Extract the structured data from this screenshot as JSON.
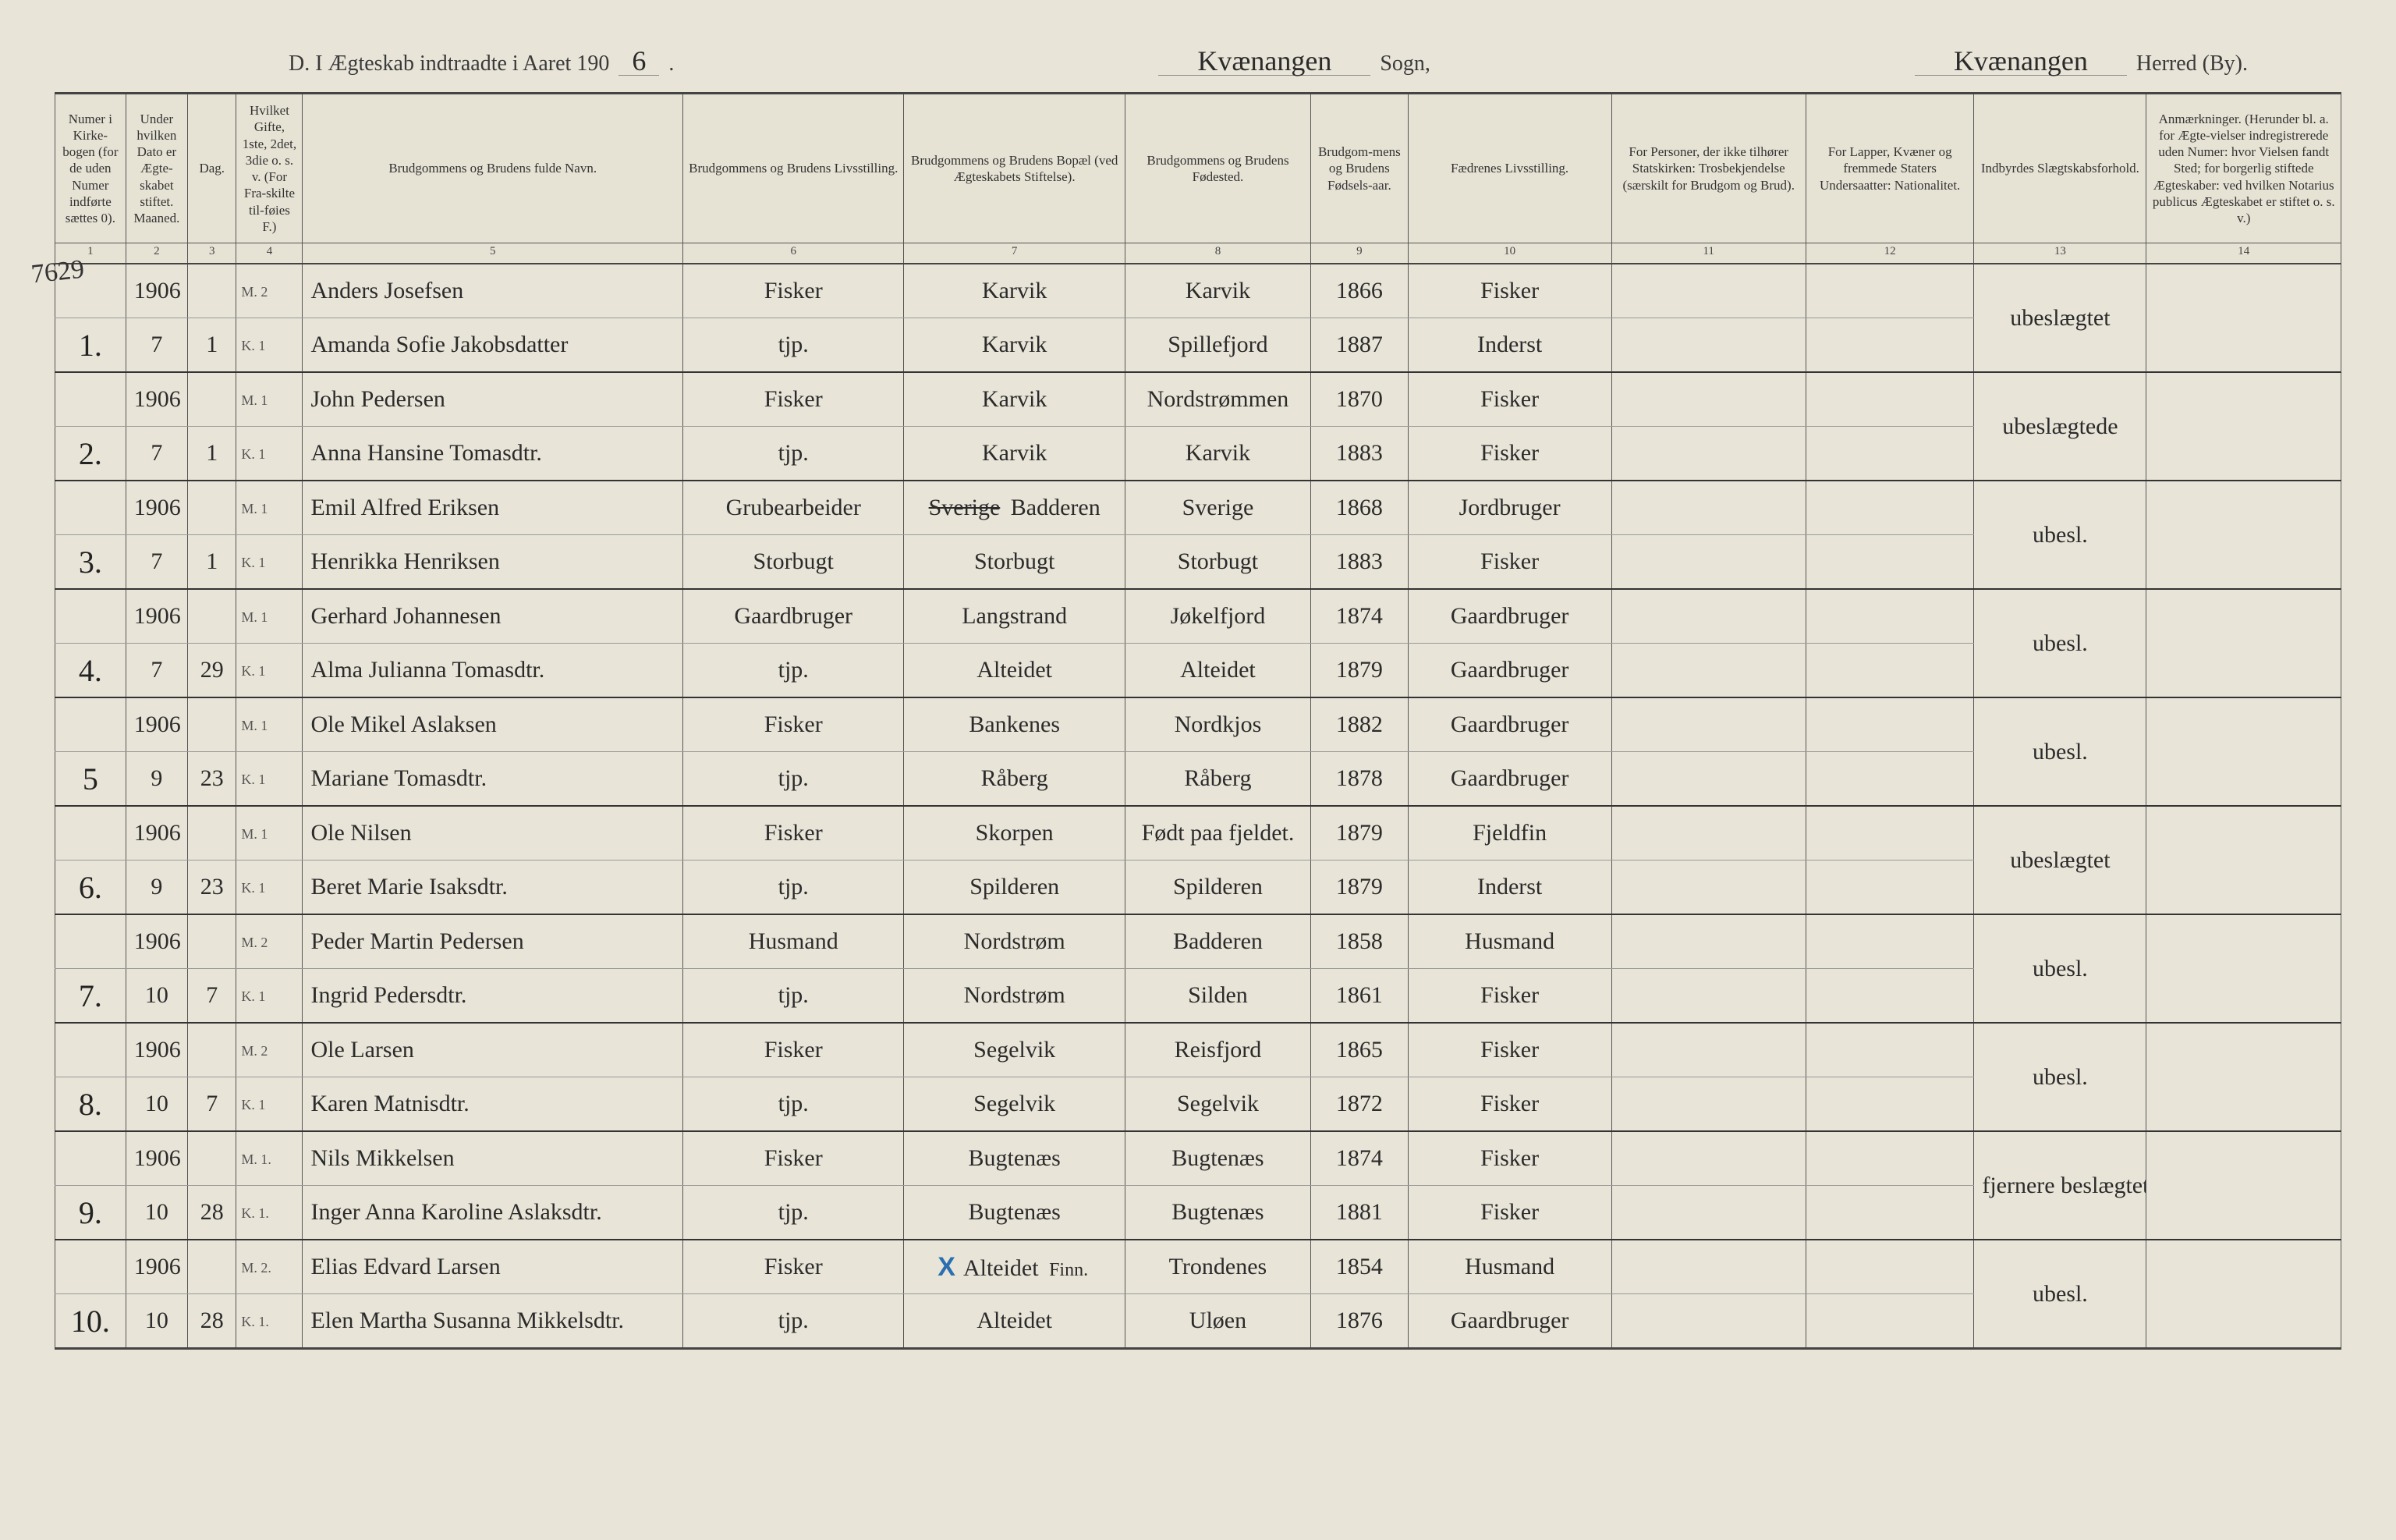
{
  "header": {
    "prefix": "D.  I Ægteskab indtraadte i Aaret 190",
    "year_suffix": "6",
    "period": ".",
    "sogn_value": "Kvænangen",
    "sogn_label": "Sogn,",
    "herred_value": "Kvænangen",
    "herred_label": "Herred (By)."
  },
  "margin_note": "7629",
  "columns": {
    "c1": "Numer i Kirke-bogen (for de uden Numer indførte sættes 0).",
    "c2": "Under hvilken Dato er Ægte-skabet stiftet.\nMaaned.",
    "c3": "Dag.",
    "c4": "Hvilket Gifte, 1ste, 2det, 3die o. s. v. (For Fra-skilte til-føies F.)",
    "c5": "Brudgommens og Brudens fulde Navn.",
    "c6": "Brudgommens og Brudens Livsstilling.",
    "c7": "Brudgommens og Brudens Bopæl (ved Ægteskabets Stiftelse).",
    "c8": "Brudgommens og Brudens Fødested.",
    "c9": "Brudgom-mens og Brudens Fødsels-aar.",
    "c10": "Fædrenes Livsstilling.",
    "c11": "For Personer, der ikke tilhører Statskirken: Trosbekjendelse (særskilt for Brudgom og Brud).",
    "c12": "For Lapper, Kvæner og fremmede Staters Undersaatter: Nationalitet.",
    "c13": "Indbyrdes Slægtskabsforhold.",
    "c14": "Anmærkninger. (Herunder bl. a. for Ægte-vielser indregistrerede uden Numer: hvor Vielsen fandt Sted; for borgerlig stiftede Ægteskaber: ved hvilken Notarius publicus Ægteskabet er stiftet o. s. v.)"
  },
  "colnums": [
    "1",
    "2",
    "3",
    "4",
    "5",
    "6",
    "7",
    "8",
    "9",
    "10",
    "11",
    "12",
    "13",
    "14"
  ],
  "rows": [
    {
      "num": "1.",
      "m": {
        "year": "1906",
        "month": "7",
        "day": "1",
        "gifte": "M. 2",
        "navn": "Anders Josefsen",
        "stilling": "Fisker",
        "bopael": "Karvik",
        "fodested": "Karvik",
        "aar": "1866",
        "faedre": "Fisker",
        "c11": "",
        "c12": "",
        "c13": "ubeslægtet",
        "c14": ""
      },
      "k": {
        "year": "",
        "month": "",
        "day": "",
        "gifte": "K. 1",
        "navn": "Amanda Sofie Jakobsdatter",
        "stilling": "tjp.",
        "bopael": "Karvik",
        "fodested": "Spillefjord",
        "aar": "1887",
        "faedre": "Inderst",
        "c11": "",
        "c12": "",
        "c13": "",
        "c14": ""
      }
    },
    {
      "num": "2.",
      "m": {
        "year": "1906",
        "month": "7",
        "day": "1",
        "gifte": "M. 1",
        "navn": "John Pedersen",
        "stilling": "Fisker",
        "bopael": "Karvik",
        "fodested": "Nordstrømmen",
        "aar": "1870",
        "faedre": "Fisker",
        "c11": "",
        "c12": "",
        "c13": "ubeslægtede",
        "c14": ""
      },
      "k": {
        "year": "",
        "month": "",
        "day": "",
        "gifte": "K. 1",
        "navn": "Anna Hansine Tomasdtr.",
        "stilling": "tjp.",
        "bopael": "Karvik",
        "fodested": "Karvik",
        "aar": "1883",
        "faedre": "Fisker",
        "c11": "",
        "c12": "",
        "c13": "",
        "c14": ""
      }
    },
    {
      "num": "3.",
      "m": {
        "year": "1906",
        "month": "7",
        "day": "1",
        "gifte": "M. 1",
        "navn": "Emil Alfred Eriksen",
        "stilling": "Grubearbeider",
        "bopael": "Badderen",
        "bopael_strike": "Sverige",
        "fodested": "Sverige",
        "aar": "1868",
        "faedre": "Jordbruger",
        "c11": "",
        "c12": "",
        "c13": "ubesl.",
        "c14": ""
      },
      "k": {
        "year": "",
        "month": "",
        "day": "",
        "gifte": "K. 1",
        "navn": "Henrikka Henriksen",
        "stilling": "Storbugt",
        "bopael": "Storbugt",
        "fodested": "Storbugt",
        "aar": "1883",
        "faedre": "Fisker",
        "c11": "",
        "c12": "",
        "c13": "",
        "c14": ""
      }
    },
    {
      "num": "4.",
      "m": {
        "year": "1906",
        "month": "7",
        "day": "29",
        "gifte": "M. 1",
        "navn": "Gerhard Johannesen",
        "stilling": "Gaardbruger",
        "bopael": "Langstrand",
        "fodested": "Jøkelfjord",
        "aar": "1874",
        "faedre": "Gaardbruger",
        "c11": "",
        "c12": "",
        "c13": "ubesl.",
        "c14": ""
      },
      "k": {
        "year": "",
        "month": "",
        "day": "",
        "gifte": "K. 1",
        "navn": "Alma Julianna Tomasdtr.",
        "stilling": "tjp.",
        "bopael": "Alteidet",
        "fodested": "Alteidet",
        "aar": "1879",
        "faedre": "Gaardbruger",
        "c11": "",
        "c12": "",
        "c13": "",
        "c14": ""
      }
    },
    {
      "num": "5",
      "m": {
        "year": "1906",
        "month": "9",
        "day": "23",
        "gifte": "M. 1",
        "navn": "Ole Mikel Aslaksen",
        "stilling": "Fisker",
        "bopael": "Bankenes",
        "fodested": "Nordkjos",
        "aar": "1882",
        "faedre": "Gaardbruger",
        "c11": "",
        "c12": "",
        "c13": "ubesl.",
        "c14": ""
      },
      "k": {
        "year": "",
        "month": "",
        "day": "",
        "gifte": "K. 1",
        "navn": "Mariane Tomasdtr.",
        "stilling": "tjp.",
        "bopael": "Råberg",
        "fodested": "Råberg",
        "aar": "1878",
        "faedre": "Gaardbruger",
        "c11": "",
        "c12": "",
        "c13": "",
        "c14": ""
      }
    },
    {
      "num": "6.",
      "m": {
        "year": "1906",
        "month": "9",
        "day": "23",
        "gifte": "M. 1",
        "navn": "Ole Nilsen",
        "stilling": "Fisker",
        "bopael": "Skorpen",
        "fodested": "Født paa fjeldet.",
        "aar": "1879",
        "faedre": "Fjeldfin",
        "c11": "",
        "c12": "",
        "c13": "ubeslægtet",
        "c14": ""
      },
      "k": {
        "year": "",
        "month": "",
        "day": "",
        "gifte": "K. 1",
        "navn": "Beret Marie Isaksdtr.",
        "stilling": "tjp.",
        "bopael": "Spilderen",
        "fodested": "Spilderen",
        "aar": "1879",
        "faedre": "Inderst",
        "c11": "",
        "c12": "",
        "c13": "",
        "c14": ""
      }
    },
    {
      "num": "7.",
      "m": {
        "year": "1906",
        "month": "10",
        "day": "7",
        "gifte": "M. 2",
        "navn": "Peder Martin Pedersen",
        "stilling": "Husmand",
        "bopael": "Nordstrøm",
        "fodested": "Badderen",
        "aar": "1858",
        "faedre": "Husmand",
        "c11": "",
        "c12": "",
        "c13": "ubesl.",
        "c14": ""
      },
      "k": {
        "year": "",
        "month": "",
        "day": "",
        "gifte": "K. 1",
        "navn": "Ingrid Pedersdtr.",
        "stilling": "tjp.",
        "bopael": "Nordstrøm",
        "fodested": "Silden",
        "aar": "1861",
        "faedre": "Fisker",
        "c11": "",
        "c12": "",
        "c13": "",
        "c14": ""
      }
    },
    {
      "num": "8.",
      "m": {
        "year": "1906",
        "month": "10",
        "day": "7",
        "gifte": "M. 2",
        "navn": "Ole Larsen",
        "stilling": "Fisker",
        "bopael": "Segelvik",
        "fodested": "Reisfjord",
        "aar": "1865",
        "faedre": "Fisker",
        "c11": "",
        "c12": "",
        "c13": "ubesl.",
        "c14": ""
      },
      "k": {
        "year": "",
        "month": "",
        "day": "",
        "gifte": "K. 1",
        "navn": "Karen Matnisdtr.",
        "stilling": "tjp.",
        "bopael": "Segelvik",
        "fodested": "Segelvik",
        "aar": "1872",
        "faedre": "Fisker",
        "c11": "",
        "c12": "",
        "c13": "",
        "c14": ""
      }
    },
    {
      "num": "9.",
      "m": {
        "year": "1906",
        "month": "10",
        "day": "28",
        "gifte": "M. 1.",
        "navn": "Nils Mikkelsen",
        "stilling": "Fisker",
        "bopael": "Bugtenæs",
        "fodested": "Bugtenæs",
        "aar": "1874",
        "faedre": "Fisker",
        "c11": "",
        "c12": "",
        "c13": "fjernere beslægtet",
        "c14": ""
      },
      "k": {
        "year": "",
        "month": "",
        "day": "",
        "gifte": "K. 1.",
        "navn": "Inger Anna Karoline Aslaksdtr.",
        "stilling": "tjp.",
        "bopael": "Bugtenæs",
        "fodested": "Bugtenæs",
        "aar": "1881",
        "faedre": "Fisker",
        "c11": "",
        "c12": "",
        "c13": "",
        "c14": ""
      }
    },
    {
      "num": "10.",
      "m": {
        "year": "1906",
        "month": "10",
        "day": "28",
        "gifte": "M. 2.",
        "navn": "Elias Edvard Larsen",
        "stilling": "Fisker",
        "bopael": "Alteidet",
        "bopael_note": "Finn.",
        "bopael_x": true,
        "fodested": "Trondenes",
        "aar": "1854",
        "faedre": "Husmand",
        "c11": "",
        "c12": "",
        "c13": "ubesl.",
        "c14": ""
      },
      "k": {
        "year": "",
        "month": "",
        "day": "",
        "gifte": "K. 1.",
        "navn": "Elen Martha Susanna Mikkelsdtr.",
        "stilling": "tjp.",
        "bopael": "Alteidet",
        "fodested": "Uløen",
        "aar": "1876",
        "faedre": "Gaardbruger",
        "c11": "",
        "c12": "",
        "c13": "",
        "c14": ""
      }
    }
  ]
}
